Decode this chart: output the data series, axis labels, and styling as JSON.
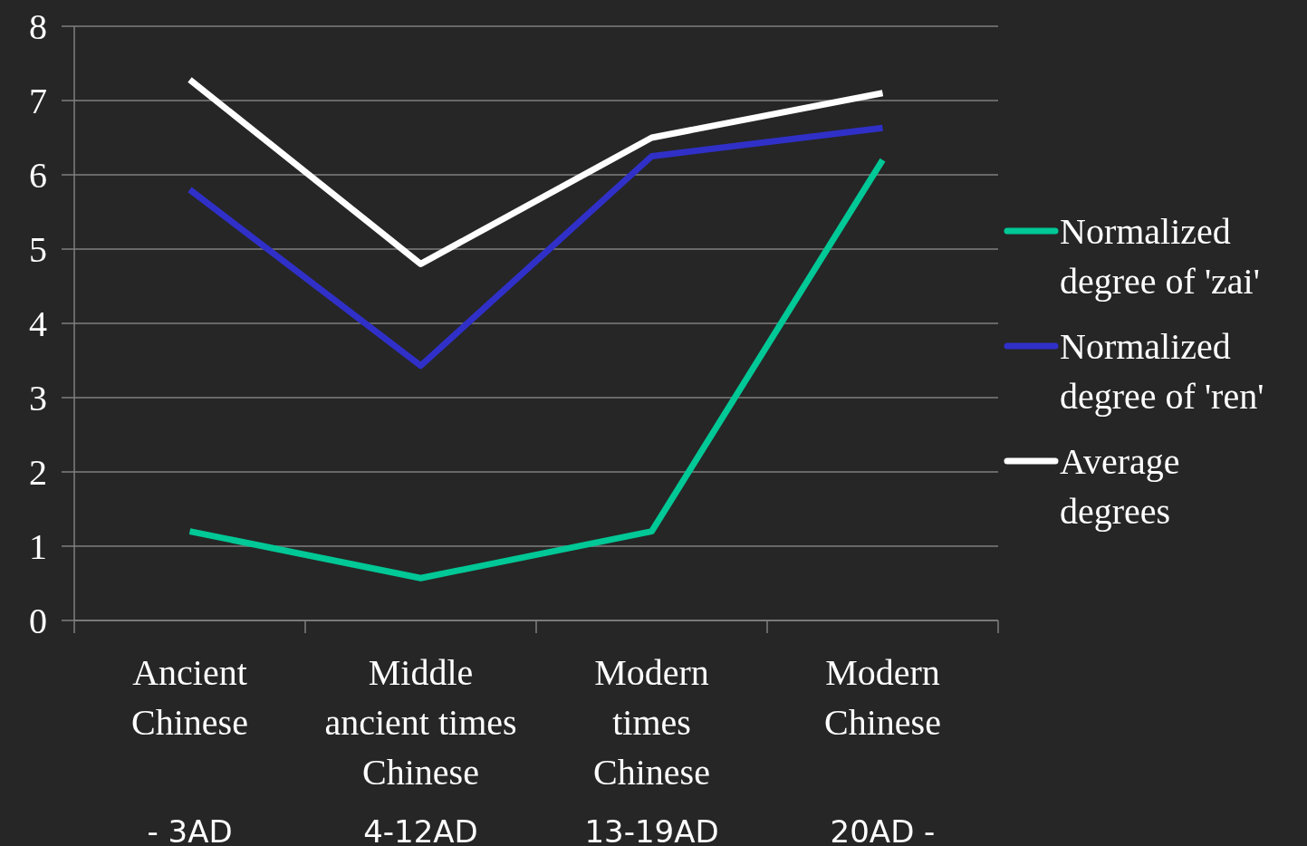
{
  "chart_data": {
    "type": "line",
    "categories": [
      "Ancient\nChinese\n\n- 3AD",
      "Middle\nancient times\nChinese\n4-12AD",
      "Modern\ntimes\nChinese\n13-19AD",
      "Modern\nChinese\n\n20AD -"
    ],
    "series": [
      {
        "name": "Normalized degree of 'zai'",
        "color": "#00c896",
        "values": [
          1.2,
          0.57,
          1.2,
          6.2
        ]
      },
      {
        "name": "Normalized degree of 'ren'",
        "color": "#3030c8",
        "values": [
          5.8,
          3.43,
          6.25,
          6.63
        ]
      },
      {
        "name": "Average degrees",
        "color": "#ffffff",
        "values": [
          7.28,
          4.8,
          6.5,
          7.1
        ]
      }
    ],
    "ylim": [
      0,
      8
    ],
    "yticks": [
      0,
      1,
      2,
      3,
      4,
      5,
      6,
      7,
      8
    ],
    "grid": "y",
    "legend": "right",
    "line_style": "solid"
  }
}
